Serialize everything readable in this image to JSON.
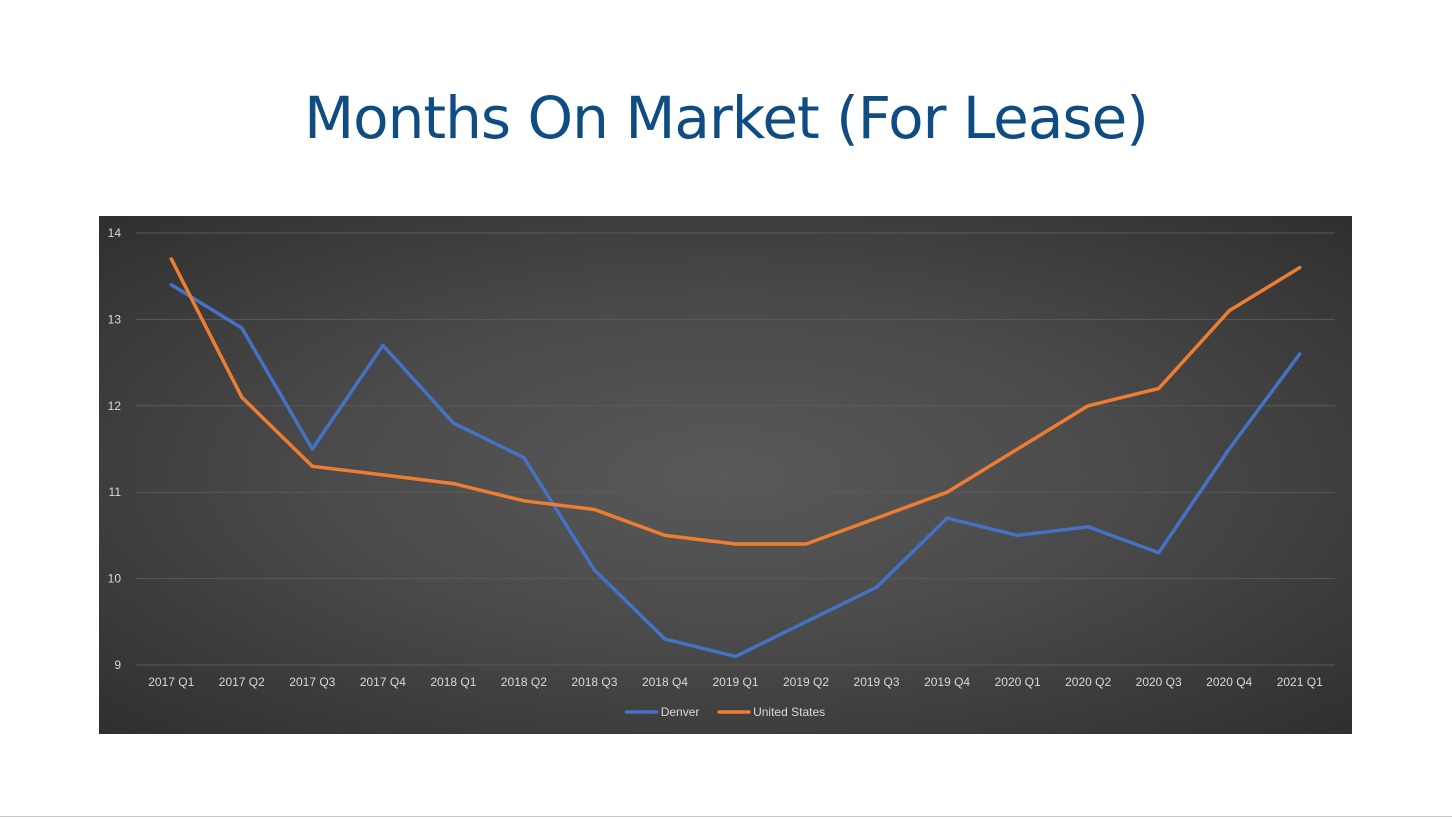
{
  "slide": {
    "title": "Months On Market (For Lease)"
  },
  "chart_data": {
    "type": "line",
    "title": "",
    "xlabel": "",
    "ylabel": "",
    "categories": [
      "2017 Q1",
      "2017 Q2",
      "2017 Q3",
      "2017 Q4",
      "2018 Q1",
      "2018 Q2",
      "2018 Q3",
      "2018 Q4",
      "2019 Q1",
      "2019 Q2",
      "2019 Q3",
      "2019 Q4",
      "2020 Q1",
      "2020 Q2",
      "2020 Q3",
      "2020 Q4",
      "2021 Q1"
    ],
    "ylim": [
      9,
      14
    ],
    "yticks": [
      9,
      10,
      11,
      12,
      13,
      14
    ],
    "grid": true,
    "legend_position": "bottom",
    "series": [
      {
        "name": "Denver",
        "color": "#4472c4",
        "values": [
          13.4,
          12.9,
          11.5,
          12.7,
          11.8,
          11.4,
          10.1,
          9.3,
          9.1,
          9.5,
          9.9,
          10.7,
          10.5,
          10.6,
          10.3,
          11.5,
          12.6
        ]
      },
      {
        "name": "United States",
        "color": "#ed7d31",
        "values": [
          13.7,
          12.1,
          11.3,
          11.2,
          11.1,
          10.9,
          10.8,
          10.5,
          10.4,
          10.4,
          10.7,
          11.0,
          11.5,
          12.0,
          12.2,
          13.1,
          13.6
        ]
      }
    ],
    "colors": {
      "background": "#404040",
      "gridline": "#5a5a5a",
      "text": "#d9d9d9"
    }
  }
}
